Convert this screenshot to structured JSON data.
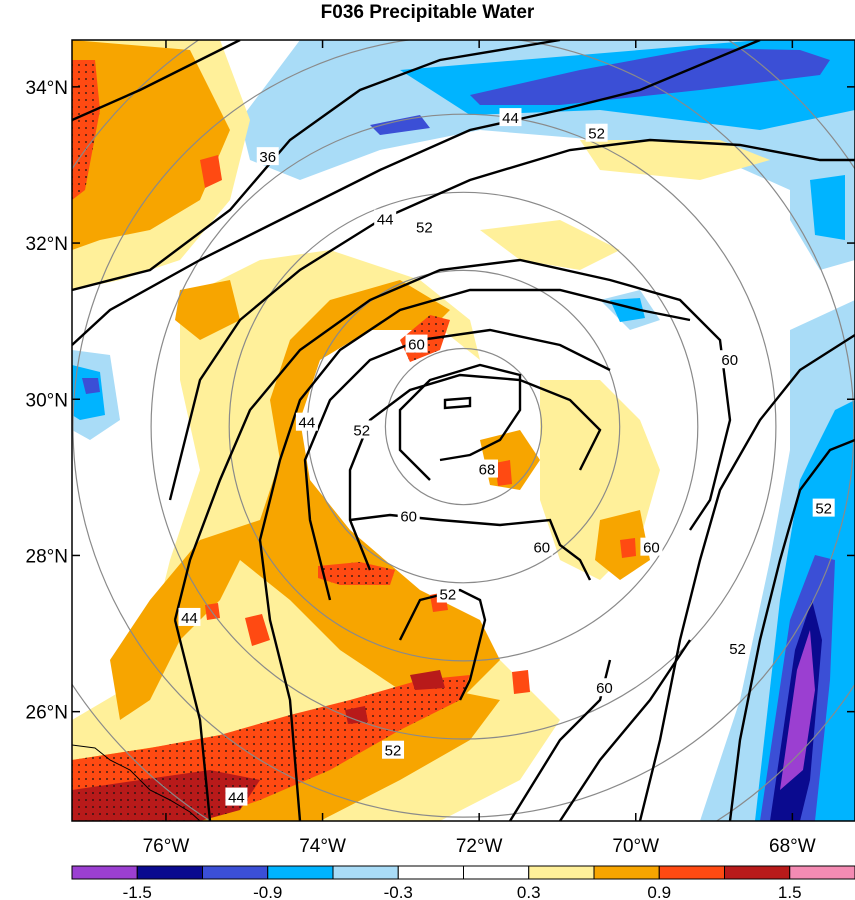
{
  "title": "F036 Precipitable Water",
  "map": {
    "lon_range": [
      -77.2,
      -67.2
    ],
    "lat_range": [
      24.6,
      34.6
    ],
    "lon_ticks": [
      {
        "value": -76,
        "label": "76°W"
      },
      {
        "value": -74,
        "label": "74°W"
      },
      {
        "value": -72,
        "label": "72°W"
      },
      {
        "value": -70,
        "label": "70°W"
      },
      {
        "value": -68,
        "label": "68°W"
      }
    ],
    "lat_ticks": [
      {
        "value": 34,
        "label": "34°N"
      },
      {
        "value": 32,
        "label": "32°N"
      },
      {
        "value": 30,
        "label": "30°N"
      },
      {
        "value": 28,
        "label": "28°N"
      },
      {
        "value": 26,
        "label": "26°N"
      }
    ],
    "range_rings": {
      "center": {
        "lon": -72.2,
        "lat": 29.65
      },
      "radii_deg": [
        1.0,
        2.0,
        3.0,
        4.0,
        5.0,
        6.0
      ]
    }
  },
  "contour_labels": [
    {
      "text": "36",
      "lon": -74.7,
      "lat": 33.1
    },
    {
      "text": "44",
      "lon": -71.6,
      "lat": 33.6
    },
    {
      "text": "52",
      "lon": -70.5,
      "lat": 33.4
    },
    {
      "text": "44",
      "lon": -73.2,
      "lat": 32.3
    },
    {
      "text": "52",
      "lon": -72.7,
      "lat": 32.2
    },
    {
      "text": "60",
      "lon": -72.8,
      "lat": 30.7
    },
    {
      "text": "60",
      "lon": -68.8,
      "lat": 30.5
    },
    {
      "text": "44",
      "lon": -74.2,
      "lat": 29.7
    },
    {
      "text": "52",
      "lon": -73.5,
      "lat": 29.6
    },
    {
      "text": "68",
      "lon": -71.9,
      "lat": 29.1
    },
    {
      "text": "60",
      "lon": -72.9,
      "lat": 28.5
    },
    {
      "text": "60",
      "lon": -71.2,
      "lat": 28.1
    },
    {
      "text": "60",
      "lon": -69.8,
      "lat": 28.1
    },
    {
      "text": "52",
      "lon": -67.6,
      "lat": 28.6
    },
    {
      "text": "52",
      "lon": -72.4,
      "lat": 27.5
    },
    {
      "text": "44",
      "lon": -75.7,
      "lat": 27.2
    },
    {
      "text": "52",
      "lon": -68.7,
      "lat": 26.8
    },
    {
      "text": "60",
      "lon": -70.4,
      "lat": 26.3
    },
    {
      "text": "52",
      "lon": -73.1,
      "lat": 25.5
    },
    {
      "text": "44",
      "lon": -75.1,
      "lat": 24.9
    }
  ],
  "colorbar": {
    "colors": [
      "#9b3fd1",
      "#0a0a8f",
      "#3b4fd6",
      "#00b4ff",
      "#a9dcf7",
      "#ffffff",
      "#ffffff",
      "#fff09a",
      "#f7a500",
      "#ff4a12",
      "#b81a1a",
      "#f48bb3"
    ],
    "tick_labels": [
      {
        "index": 1,
        "text": "-1.5"
      },
      {
        "index": 3,
        "text": "-0.9"
      },
      {
        "index": 5,
        "text": "-0.3"
      },
      {
        "index": 7,
        "text": "0.3"
      },
      {
        "index": 9,
        "text": "0.9"
      },
      {
        "index": 11,
        "text": "1.5"
      }
    ]
  }
}
